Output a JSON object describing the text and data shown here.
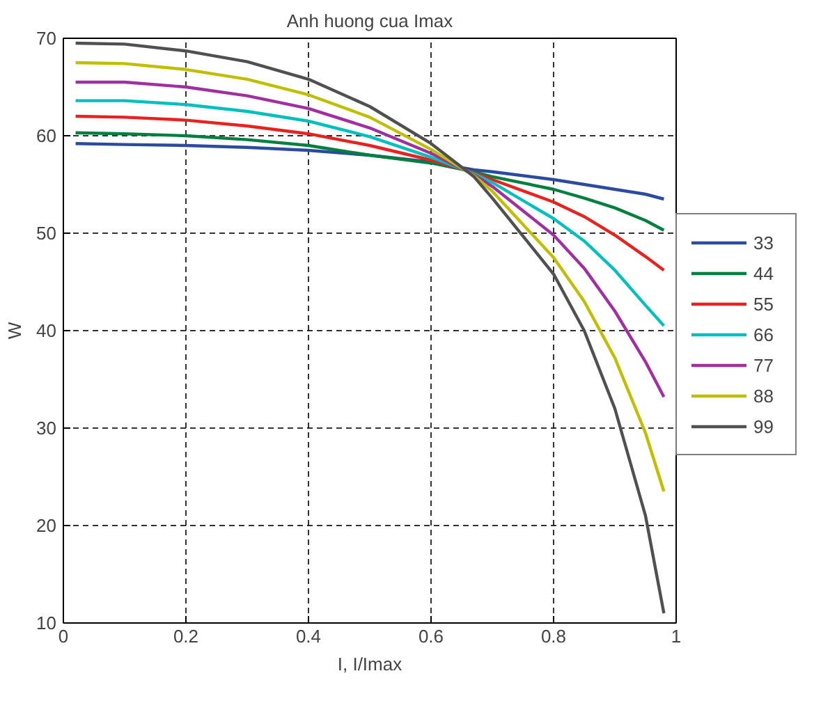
{
  "chart_data": {
    "type": "line",
    "title": "Anh huong cua Imax",
    "xlabel": "I, I/Imax",
    "ylabel": "W",
    "x": [
      0.02,
      0.1,
      0.2,
      0.3,
      0.4,
      0.5,
      0.6,
      0.67,
      0.7,
      0.8,
      0.85,
      0.9,
      0.95,
      0.98
    ],
    "series": [
      {
        "name": "33",
        "color": "#2a4ba0",
        "values": [
          59.2,
          59.1,
          59.0,
          58.8,
          58.5,
          58.0,
          57.3,
          56.5,
          56.3,
          55.5,
          55.0,
          54.5,
          54.0,
          53.5
        ]
      },
      {
        "name": "44",
        "color": "#007f3f",
        "values": [
          60.3,
          60.2,
          60.0,
          59.6,
          59.0,
          58.0,
          57.2,
          56.3,
          55.8,
          54.5,
          53.6,
          52.6,
          51.3,
          50.3
        ]
      },
      {
        "name": "55",
        "color": "#e8221e",
        "values": [
          62.0,
          61.9,
          61.6,
          61.0,
          60.2,
          59.0,
          57.5,
          56.2,
          55.5,
          53.2,
          51.7,
          49.8,
          47.6,
          46.2
        ]
      },
      {
        "name": "66",
        "color": "#00bfbf",
        "values": [
          63.6,
          63.6,
          63.2,
          62.5,
          61.5,
          59.9,
          57.8,
          56.1,
          55.2,
          51.5,
          49.2,
          46.2,
          42.6,
          40.5
        ]
      },
      {
        "name": "77",
        "color": "#a030a0",
        "values": [
          65.5,
          65.5,
          65.0,
          64.1,
          62.8,
          60.8,
          58.2,
          56.0,
          54.8,
          49.8,
          46.4,
          42.0,
          36.8,
          33.2
        ]
      },
      {
        "name": "88",
        "color": "#bfbf00",
        "values": [
          67.5,
          67.4,
          66.8,
          65.8,
          64.2,
          61.9,
          58.6,
          55.9,
          54.3,
          47.5,
          43.0,
          37.2,
          29.5,
          23.5
        ]
      },
      {
        "name": "99",
        "color": "#505050",
        "values": [
          69.5,
          69.4,
          68.7,
          67.6,
          65.8,
          63.0,
          59.2,
          55.8,
          53.6,
          45.8,
          40.0,
          32.0,
          21.0,
          11.0
        ]
      }
    ],
    "xlim": [
      0,
      1
    ],
    "xticks": [
      0,
      0.2,
      0.4,
      0.6,
      0.8,
      1
    ],
    "ylim": [
      10,
      70
    ],
    "yticks": [
      10,
      20,
      30,
      40,
      50,
      60,
      70
    ],
    "grid": true,
    "legend": "right",
    "line_style": "solid"
  }
}
